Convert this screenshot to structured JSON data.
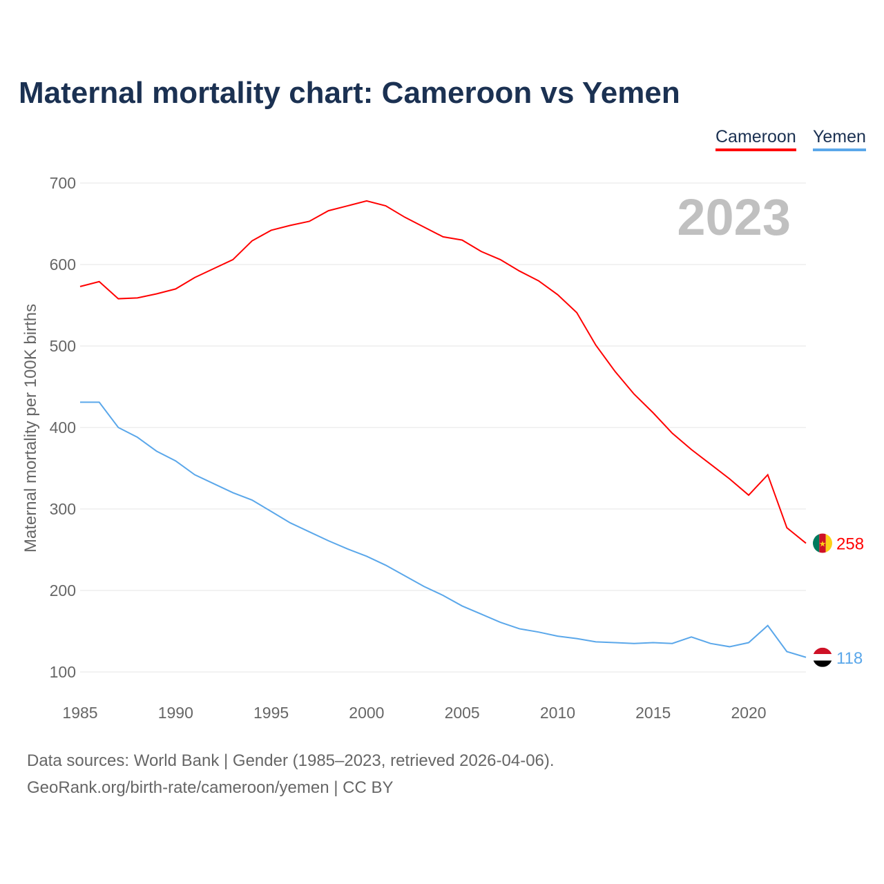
{
  "chart_data": {
    "type": "line",
    "title": "Maternal mortality chart: Cameroon vs Yemen",
    "ylabel": "Maternal mortality per 100K births",
    "xlabel": "",
    "year_watermark": "2023",
    "ylim": [
      100,
      700
    ],
    "xlim": [
      1985,
      2023
    ],
    "yticks": [
      100,
      200,
      300,
      400,
      500,
      600,
      700
    ],
    "xticks": [
      1985,
      1990,
      1995,
      2000,
      2005,
      2010,
      2015,
      2020
    ],
    "grid": true,
    "legend_position": "top-right",
    "x": [
      1985,
      1986,
      1987,
      1988,
      1989,
      1990,
      1991,
      1992,
      1993,
      1994,
      1995,
      1996,
      1997,
      1998,
      1999,
      2000,
      2001,
      2002,
      2003,
      2004,
      2005,
      2006,
      2007,
      2008,
      2009,
      2010,
      2011,
      2012,
      2013,
      2014,
      2015,
      2016,
      2017,
      2018,
      2019,
      2020,
      2021,
      2022,
      2023
    ],
    "series": [
      {
        "name": "Cameroon",
        "color": "#ff0000",
        "end_label": "258",
        "values": [
          573,
          579,
          558,
          559,
          564,
          570,
          584,
          595,
          606,
          629,
          642,
          648,
          653,
          666,
          672,
          678,
          672,
          658,
          646,
          634,
          630,
          616,
          606,
          592,
          580,
          563,
          541,
          501,
          469,
          441,
          418,
          393,
          373,
          355,
          337,
          317,
          342,
          277,
          258
        ]
      },
      {
        "name": "Yemen",
        "color": "#5aa7ea",
        "end_label": "118",
        "values": [
          431,
          431,
          400,
          388,
          371,
          359,
          342,
          331,
          320,
          311,
          297,
          283,
          272,
          261,
          251,
          242,
          231,
          218,
          205,
          194,
          181,
          171,
          161,
          153,
          149,
          144,
          141,
          137,
          136,
          135,
          136,
          135,
          143,
          135,
          131,
          136,
          157,
          125,
          118
        ]
      }
    ]
  },
  "footer": {
    "line1": "Data sources: World Bank | Gender (1985–2023, retrieved 2026-04-06).",
    "line2": "GeoRank.org/birth-rate/cameroon/yemen | CC BY"
  }
}
